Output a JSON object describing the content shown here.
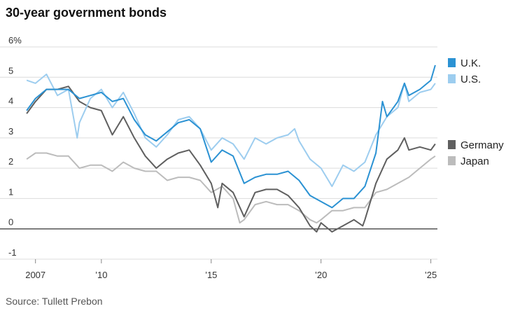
{
  "title": "30-year government bonds",
  "source": "Source: Tullett Prebon",
  "colors": {
    "UK": "#2b92d3",
    "US": "#9dcdef",
    "Germany": "#5f5f5f",
    "Japan": "#bcbcbc",
    "grid": "#dcdcdc",
    "zero": "#555555"
  },
  "chart_data": {
    "type": "line",
    "title": "30-year government bonds",
    "xlabel": "",
    "ylabel": "",
    "unit": "%",
    "xlim": [
      2006.5,
      2025.3
    ],
    "ylim": [
      -1,
      6
    ],
    "y_ticks": [
      6,
      5,
      4,
      3,
      2,
      1,
      0,
      -1
    ],
    "y_tick_labels": [
      "6%",
      "5",
      "4",
      "3",
      "2",
      "1",
      "0",
      "-1"
    ],
    "x_ticks": [
      2007,
      2010,
      2015,
      2020,
      2025
    ],
    "x_tick_labels": [
      "2007",
      "’10",
      "’15",
      "’20",
      "’25"
    ],
    "grid": true,
    "legend_placement": "right, beside line ends",
    "series": [
      {
        "name": "U.K.",
        "x": [
          2006.6,
          2007.0,
          2007.5,
          2008.0,
          2008.5,
          2009.0,
          2009.5,
          2010.0,
          2010.5,
          2011.0,
          2011.5,
          2012.0,
          2012.5,
          2013.0,
          2013.5,
          2014.0,
          2014.5,
          2015.0,
          2015.5,
          2016.0,
          2016.5,
          2017.0,
          2017.5,
          2018.0,
          2018.5,
          2019.0,
          2019.5,
          2020.0,
          2020.5,
          2021.0,
          2021.5,
          2022.0,
          2022.5,
          2022.8,
          2023.0,
          2023.5,
          2023.8,
          2024.0,
          2024.5,
          2025.0,
          2025.2
        ],
        "values": [
          3.9,
          4.3,
          4.6,
          4.6,
          4.6,
          4.3,
          4.4,
          4.5,
          4.2,
          4.3,
          3.6,
          3.1,
          2.9,
          3.2,
          3.5,
          3.6,
          3.3,
          2.2,
          2.6,
          2.4,
          1.5,
          1.7,
          1.8,
          1.8,
          1.9,
          1.6,
          1.1,
          0.9,
          0.7,
          1.0,
          1.0,
          1.4,
          2.5,
          4.2,
          3.7,
          4.2,
          4.8,
          4.4,
          4.6,
          4.9,
          5.4
        ]
      },
      {
        "name": "U.S.",
        "x": [
          2006.6,
          2007.0,
          2007.5,
          2008.0,
          2008.5,
          2008.9,
          2009.0,
          2009.5,
          2010.0,
          2010.5,
          2011.0,
          2011.5,
          2012.0,
          2012.5,
          2013.0,
          2013.5,
          2014.0,
          2014.5,
          2015.0,
          2015.5,
          2016.0,
          2016.5,
          2017.0,
          2017.5,
          2018.0,
          2018.5,
          2018.8,
          2019.0,
          2019.5,
          2020.0,
          2020.5,
          2021.0,
          2021.5,
          2022.0,
          2022.5,
          2023.0,
          2023.5,
          2023.8,
          2024.0,
          2024.5,
          2025.0,
          2025.2
        ],
        "values": [
          4.9,
          4.8,
          5.1,
          4.4,
          4.6,
          3.0,
          3.5,
          4.3,
          4.6,
          4.0,
          4.5,
          3.8,
          3.0,
          2.7,
          3.1,
          3.6,
          3.7,
          3.3,
          2.6,
          3.0,
          2.8,
          2.3,
          3.0,
          2.8,
          3.0,
          3.1,
          3.3,
          2.9,
          2.3,
          2.0,
          1.4,
          2.1,
          1.9,
          2.2,
          3.1,
          3.7,
          4.0,
          4.8,
          4.2,
          4.5,
          4.6,
          4.8
        ]
      },
      {
        "name": "Germany",
        "x": [
          2006.6,
          2007.0,
          2007.5,
          2008.0,
          2008.5,
          2009.0,
          2009.5,
          2010.0,
          2010.5,
          2011.0,
          2011.5,
          2012.0,
          2012.5,
          2013.0,
          2013.5,
          2014.0,
          2014.5,
          2015.0,
          2015.3,
          2015.5,
          2016.0,
          2016.5,
          2017.0,
          2017.5,
          2018.0,
          2018.5,
          2019.0,
          2019.5,
          2019.8,
          2020.0,
          2020.5,
          2021.0,
          2021.5,
          2021.9,
          2022.0,
          2022.5,
          2023.0,
          2023.5,
          2023.8,
          2024.0,
          2024.5,
          2025.0,
          2025.2
        ],
        "values": [
          3.8,
          4.2,
          4.6,
          4.6,
          4.7,
          4.2,
          4.0,
          3.9,
          3.1,
          3.7,
          3.0,
          2.4,
          2.0,
          2.3,
          2.5,
          2.6,
          2.1,
          1.5,
          0.7,
          1.5,
          1.2,
          0.4,
          1.2,
          1.3,
          1.3,
          1.1,
          0.7,
          0.1,
          -0.1,
          0.2,
          -0.1,
          0.1,
          0.3,
          0.1,
          0.3,
          1.5,
          2.3,
          2.6,
          3.0,
          2.6,
          2.7,
          2.6,
          2.8
        ]
      },
      {
        "name": "Japan",
        "x": [
          2006.6,
          2007.0,
          2007.5,
          2008.0,
          2008.5,
          2009.0,
          2009.5,
          2010.0,
          2010.5,
          2011.0,
          2011.5,
          2012.0,
          2012.5,
          2013.0,
          2013.5,
          2014.0,
          2014.5,
          2015.0,
          2015.5,
          2016.0,
          2016.3,
          2016.5,
          2017.0,
          2017.5,
          2018.0,
          2018.5,
          2019.0,
          2019.5,
          2019.8,
          2020.0,
          2020.5,
          2021.0,
          2021.5,
          2022.0,
          2022.5,
          2023.0,
          2023.5,
          2024.0,
          2024.5,
          2025.0,
          2025.2
        ],
        "values": [
          2.3,
          2.5,
          2.5,
          2.4,
          2.4,
          2.0,
          2.1,
          2.1,
          1.9,
          2.2,
          2.0,
          1.9,
          1.9,
          1.6,
          1.7,
          1.7,
          1.6,
          1.2,
          1.4,
          1.0,
          0.2,
          0.3,
          0.8,
          0.9,
          0.8,
          0.8,
          0.6,
          0.3,
          0.2,
          0.3,
          0.6,
          0.6,
          0.7,
          0.7,
          1.2,
          1.3,
          1.5,
          1.7,
          2.0,
          2.3,
          2.4
        ]
      }
    ]
  }
}
